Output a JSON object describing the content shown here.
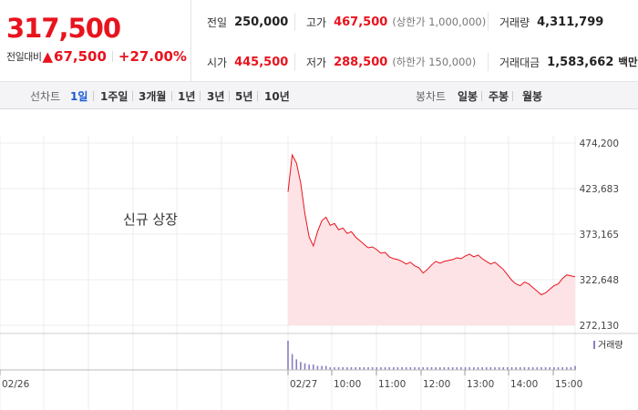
{
  "summary": {
    "price": "317,500",
    "diff_label": "전일대비",
    "diff_arrow": "▲",
    "diff_value": "67,500",
    "diff_rate": "+27.00%",
    "prev_close": {
      "label": "전일",
      "value": "250,000"
    },
    "open": {
      "label": "시가",
      "value": "445,500"
    },
    "high": {
      "label": "고가",
      "value": "467,500",
      "limit": "(상한가 1,000,000)"
    },
    "low": {
      "label": "저가",
      "value": "288,500",
      "limit": "(하한가 150,000)"
    },
    "volume": {
      "label": "거래량",
      "value": "4,311,799"
    },
    "amount": {
      "label": "거래대금",
      "value": "1,583,662",
      "unit": "백만"
    }
  },
  "tabs": {
    "line_label": "선차트",
    "line_tabs": [
      "1일",
      "1주일",
      "3개월",
      "1년",
      "3년",
      "5년",
      "10년"
    ],
    "active": "1일",
    "candle_label": "봉차트",
    "candle_tabs": [
      "일봉",
      "주봉",
      "월봉"
    ]
  },
  "chart": {
    "new_listing_label": "신규 상장",
    "volume_legend": "거래량",
    "y_ticks": [
      "474,200",
      "423,683",
      "373,165",
      "322,648",
      "272,130"
    ],
    "x_labels": [
      "02/26",
      "02/27",
      "10:00",
      "11:00",
      "12:00",
      "13:00",
      "14:00",
      "15:00"
    ]
  },
  "chart_data": {
    "type": "area",
    "xlabel": "",
    "ylabel": "",
    "ylim": [
      272130,
      474200
    ],
    "y_ticks": [
      474200,
      423683,
      373165,
      322648,
      272130
    ],
    "x_tick_labels": [
      "02/26",
      "02/27",
      "10:00",
      "11:00",
      "12:00",
      "13:00",
      "14:00",
      "15:00"
    ],
    "series": [
      {
        "values": [
          420000,
          461000,
          452000,
          430000,
          396000,
          370000,
          360000,
          376000,
          388000,
          392000,
          383000,
          385000,
          378000,
          380000,
          374000,
          376000,
          370000,
          366000,
          362000,
          358000,
          359000,
          356000,
          352000,
          353000,
          348000,
          346000,
          345000,
          343000,
          340000,
          342000,
          338000,
          336000,
          330000,
          334000,
          339000,
          343000,
          341000,
          343000,
          344000,
          345000,
          347000,
          346000,
          349000,
          351000,
          348000,
          350000,
          346000,
          343000,
          340000,
          342000,
          338000,
          334000,
          328000,
          322000,
          318000,
          316000,
          320000,
          318000,
          314000,
          310000,
          306000,
          308000,
          312000,
          316000,
          318000,
          324000,
          328000,
          327000,
          326000
        ]
      }
    ],
    "volume_series": [
      {
        "name": "거래량",
        "values": [
          22,
          12,
          8,
          6,
          5,
          4,
          4,
          3,
          3,
          3,
          2,
          2,
          2,
          2,
          2,
          2,
          2,
          2,
          2,
          2,
          2,
          2,
          2,
          2,
          2,
          2,
          2,
          2,
          2,
          2,
          2,
          2,
          2,
          2,
          2,
          2,
          2,
          2,
          2,
          2,
          2,
          2,
          2,
          2,
          2,
          2,
          2,
          2,
          2,
          2,
          2,
          2,
          2,
          2,
          2,
          2,
          2,
          2,
          2,
          2,
          2,
          2,
          2,
          2,
          2,
          2,
          2,
          2,
          3
        ]
      }
    ],
    "grid": true,
    "legend": "top-right",
    "colors": {
      "line": "#e8131e",
      "fill": "#fde3e5",
      "volume": "#8a7cc0"
    }
  },
  "colors": {
    "up": "#e8131e",
    "accent": "#1a5ad6"
  }
}
